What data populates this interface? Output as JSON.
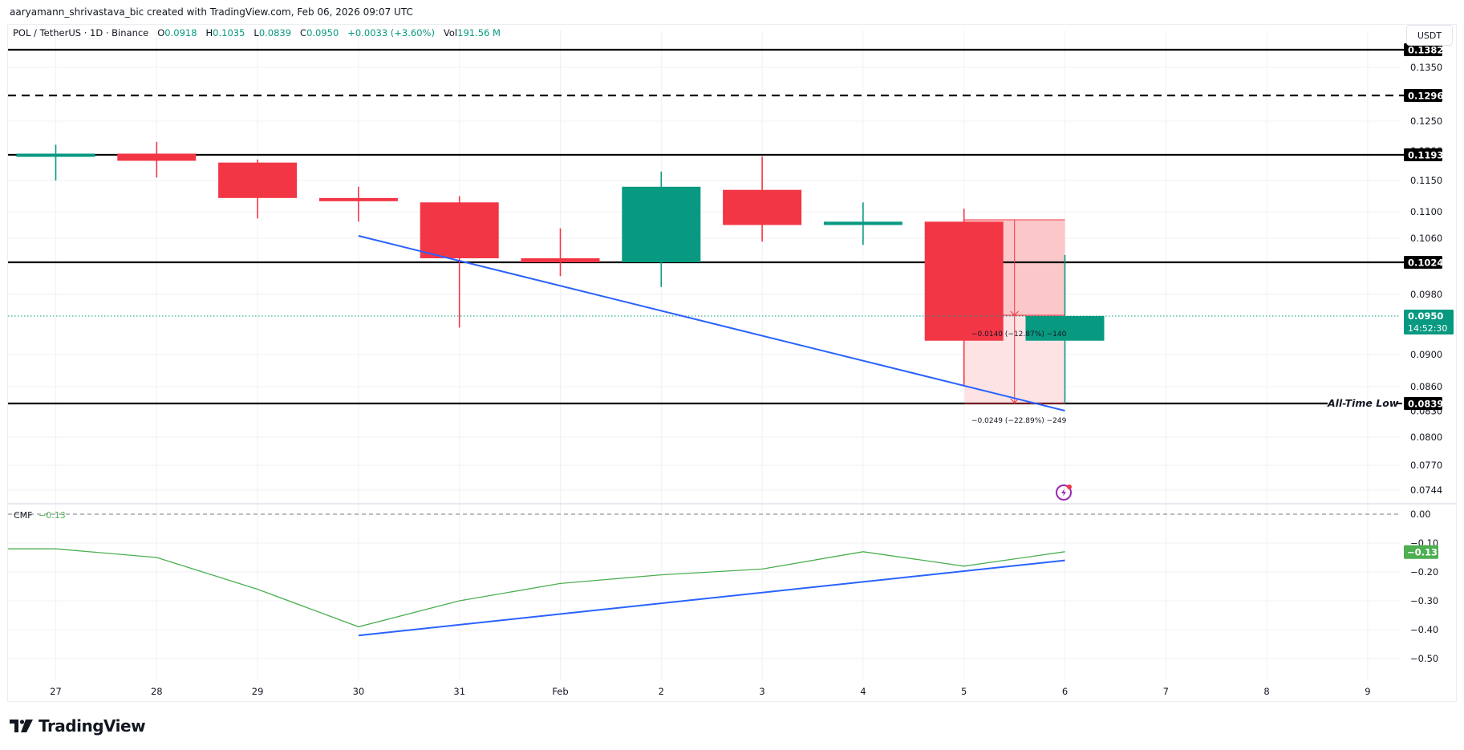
{
  "credit": "aaryamann_shrivastava_bic created with TradingView.com, Feb 06, 2026 09:07 UTC",
  "legend": {
    "symbol": "POL / TetherUS · 1D · Binance",
    "o_label": "O",
    "o": "0.0918",
    "h_label": "H",
    "h": "0.1035",
    "l_label": "L",
    "l": "0.0839",
    "c_label": "C",
    "c": "0.0950",
    "change": "+0.0033 (+3.60%)",
    "vol_label": "Vol",
    "vol": "191.56 M"
  },
  "price_axis": {
    "currency": "USDT",
    "ticks": [
      "0.1350",
      "0.1250",
      "0.1150",
      "0.1100",
      "0.1060",
      "0.0980",
      "0.0900",
      "0.0860",
      "0.0800",
      "0.0770",
      "0.0744"
    ],
    "current_price": "0.0950",
    "countdown": "14:52:30"
  },
  "cmf": {
    "label": "CMF",
    "value": "−0.13",
    "axis_ticks": [
      "0.00",
      "−0.10",
      "−0.20",
      "−0.30",
      "−0.40",
      "−0.50"
    ],
    "badge": "−0.13"
  },
  "annotations": {
    "all_time_low": "All-Time Low",
    "measure_1": "−0.0140 (−12.87%) −140",
    "measure_2": "−0.0249 (−22.89%) −249"
  },
  "time_axis": [
    "27",
    "28",
    "29",
    "30",
    "31",
    "Feb",
    "2",
    "3",
    "4",
    "5",
    "6",
    "7",
    "8",
    "9"
  ],
  "logo_text": "TradingView",
  "colors": {
    "up": "#089981",
    "down": "#f23645",
    "trendline": "#2962ff",
    "cmf_line": "#4caf50",
    "level_line": "#000000",
    "measure_fill_dark": "#fbc7c9",
    "measure_fill_light": "#fde3e4"
  },
  "chart_data": [
    {
      "type": "candlestick",
      "title": "POL / TetherUS · 1D · Binance",
      "x": [
        "Jan 27",
        "Jan 28",
        "Jan 29",
        "Jan 30",
        "Jan 31",
        "Feb 1",
        "Feb 2",
        "Feb 3",
        "Feb 4",
        "Feb 5",
        "Feb 6"
      ],
      "open": [
        0.119,
        0.1195,
        0.118,
        0.1122,
        0.1115,
        0.103,
        0.1024,
        0.1135,
        0.108,
        0.1085,
        0.0918
      ],
      "high": [
        0.121,
        0.1215,
        0.1185,
        0.114,
        0.1125,
        0.1075,
        0.1165,
        0.119,
        0.1115,
        0.1105,
        0.1035
      ],
      "low": [
        0.115,
        0.1155,
        0.109,
        0.1085,
        0.0935,
        0.1005,
        0.099,
        0.1055,
        0.105,
        0.086,
        0.0839
      ],
      "close": [
        0.1195,
        0.1183,
        0.1122,
        0.1118,
        0.103,
        0.1024,
        0.114,
        0.108,
        0.1085,
        0.0918,
        0.095
      ],
      "ylabel": "USDT",
      "yticks": [
        0.135,
        0.125,
        0.115,
        0.11,
        0.106,
        0.098,
        0.09,
        0.086,
        0.08,
        0.077,
        0.0744
      ],
      "ylim": [
        0.073,
        0.142
      ],
      "horizontal_levels": [
        {
          "value": 0.1382,
          "style": "solid"
        },
        {
          "value": 0.1296,
          "style": "dashed"
        },
        {
          "value": 0.1193,
          "style": "solid"
        },
        {
          "value": 0.1024,
          "style": "solid"
        },
        {
          "value": 0.0839,
          "style": "solid",
          "label": "All-Time Low"
        }
      ],
      "trendline": {
        "from": [
          "Jan 30",
          0.106
        ],
        "to": [
          "Feb 6",
          0.083
        ]
      },
      "measurements": [
        {
          "from": 0.109,
          "to": 0.095,
          "text": "−0.0140 (−12.87%) −140"
        },
        {
          "from": 0.1088,
          "to": 0.0839,
          "text": "−0.0249 (−22.89%) −249"
        }
      ],
      "current_price": 0.095,
      "grid": true
    },
    {
      "type": "line",
      "title": "CMF",
      "x": [
        "Jan 26",
        "Jan 27",
        "Jan 28",
        "Jan 29",
        "Jan 30",
        "Jan 31",
        "Feb 1",
        "Feb 2",
        "Feb 3",
        "Feb 4",
        "Feb 5",
        "Feb 6"
      ],
      "series": [
        {
          "name": "CMF",
          "values": [
            -0.12,
            -0.12,
            -0.15,
            -0.26,
            -0.39,
            -0.3,
            -0.24,
            -0.21,
            -0.19,
            -0.13,
            -0.18,
            -0.13
          ]
        }
      ],
      "trendline": {
        "from": [
          "Jan 30",
          -0.42
        ],
        "to": [
          "Feb 6",
          -0.16
        ]
      },
      "yticks": [
        0.0,
        -0.1,
        -0.2,
        -0.3,
        -0.4,
        -0.5
      ],
      "ylim": [
        -0.56,
        0.03
      ],
      "grid": true
    }
  ]
}
